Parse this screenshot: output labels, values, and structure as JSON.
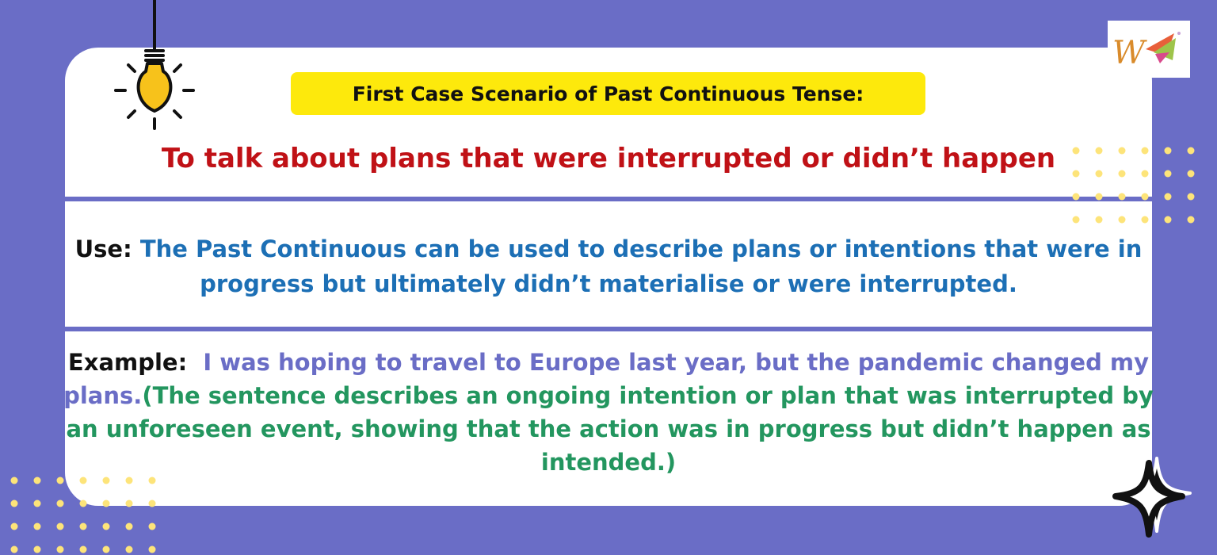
{
  "heading": "First Case Scenario of Past Continuous Tense:",
  "subtitle": "To talk about plans that were interrupted or didn’t happen",
  "use": {
    "label": "Use:",
    "text": "The Past Continuous can be used to describe plans or intentions that were in progress but ultimately didn’t materialise or were interrupted."
  },
  "example": {
    "label": "Example:",
    "sentence": "I was hoping to travel to Europe last year, but the pandemic changed my plans.",
    "explanation": "(The sentence describes an ongoing intention or plan that was interrupted by an unforeseen event, showing that the action was in progress but didn’t happen as intended.)"
  },
  "icons": {
    "bulb": "lightbulb-icon",
    "logo": "w-brand-logo",
    "sparkle": "sparkle-star-icon"
  },
  "colors": {
    "background": "#6a6dc6",
    "card": "#ffffff",
    "heading_highlight": "#fde90c",
    "subtitle": "#c01116",
    "use_text": "#1c6fb5",
    "example_sentence": "#6a6dc6",
    "explanation": "#23965f",
    "dots": "#fde47a"
  }
}
